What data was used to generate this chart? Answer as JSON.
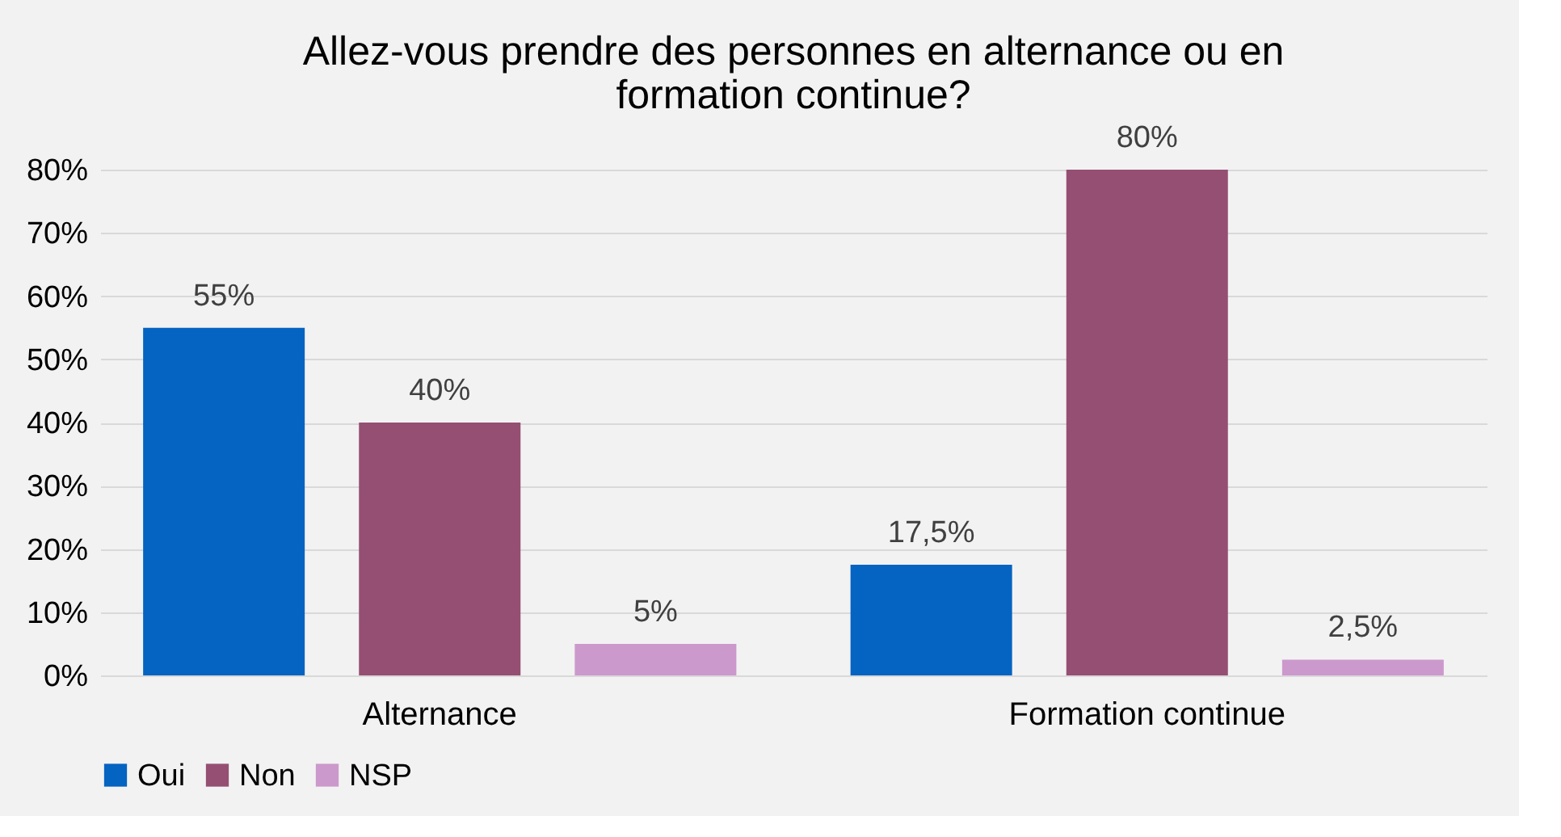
{
  "chart_data": {
    "type": "bar",
    "title": "Allez-vous prendre des personnes en alternance ou en formation continue?",
    "categories": [
      "Alternance",
      "Formation continue"
    ],
    "series": [
      {
        "name": "Oui",
        "color": "#0563c1",
        "values": [
          55,
          17.5
        ],
        "value_labels": [
          "55%",
          "17,5%"
        ]
      },
      {
        "name": "Non",
        "color": "#954f72",
        "values": [
          40,
          80
        ],
        "value_labels": [
          "40%",
          "80%"
        ]
      },
      {
        "name": "NSP",
        "color": "#cc99cc",
        "values": [
          5,
          2.5
        ],
        "value_labels": [
          "5%",
          "2,5%"
        ]
      }
    ],
    "ylim": [
      0,
      80
    ],
    "yticks": [
      {
        "value": 0,
        "label": "0%"
      },
      {
        "value": 10,
        "label": "10%"
      },
      {
        "value": 20,
        "label": "20%"
      },
      {
        "value": 30,
        "label": "30%"
      },
      {
        "value": 40,
        "label": "40%"
      },
      {
        "value": 50,
        "label": "50%"
      },
      {
        "value": 60,
        "label": "60%"
      },
      {
        "value": 70,
        "label": "70%"
      },
      {
        "value": 80,
        "label": "80%"
      }
    ],
    "grid": "y",
    "legend": "bottom"
  }
}
